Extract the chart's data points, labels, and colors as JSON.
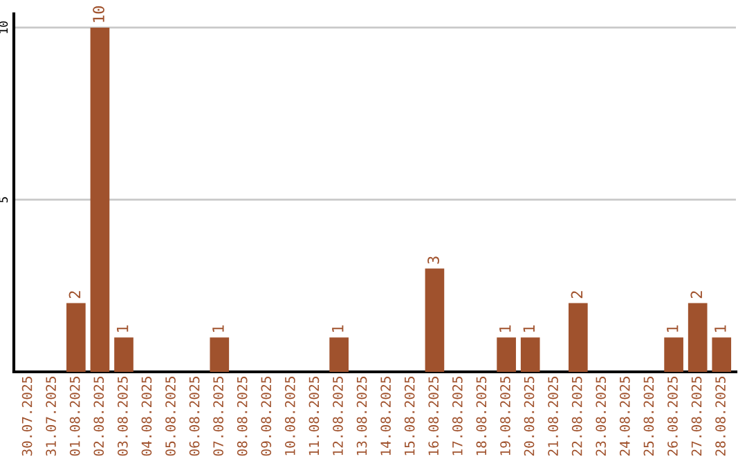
{
  "chart_data": {
    "type": "bar",
    "categories": [
      "30.07.2025",
      "31.07.2025",
      "01.08.2025",
      "02.08.2025",
      "03.08.2025",
      "04.08.2025",
      "05.08.2025",
      "06.08.2025",
      "07.08.2025",
      "08.08.2025",
      "09.08.2025",
      "10.08.2025",
      "11.08.2025",
      "12.08.2025",
      "13.08.2025",
      "14.08.2025",
      "15.08.2025",
      "16.08.2025",
      "17.08.2025",
      "18.08.2025",
      "19.08.2025",
      "20.08.2025",
      "21.08.2025",
      "22.08.2025",
      "23.08.2025",
      "24.08.2025",
      "25.08.2025",
      "26.08.2025",
      "27.08.2025",
      "28.08.2025"
    ],
    "values": [
      0,
      0,
      2,
      10,
      1,
      0,
      0,
      0,
      1,
      0,
      0,
      0,
      0,
      1,
      0,
      0,
      0,
      3,
      0,
      0,
      1,
      1,
      0,
      2,
      0,
      0,
      0,
      1,
      2,
      1
    ],
    "value_labels": [
      null,
      null,
      "2",
      "10",
      "1",
      null,
      null,
      null,
      "1",
      null,
      null,
      null,
      null,
      "1",
      null,
      null,
      null,
      "3",
      null,
      null,
      "1",
      "1",
      null,
      "2",
      null,
      null,
      null,
      "1",
      "2",
      "1"
    ],
    "color": "#a0522d",
    "ylim": [
      0,
      10.4
    ],
    "yticks": [
      5,
      10
    ],
    "grid": "y"
  }
}
